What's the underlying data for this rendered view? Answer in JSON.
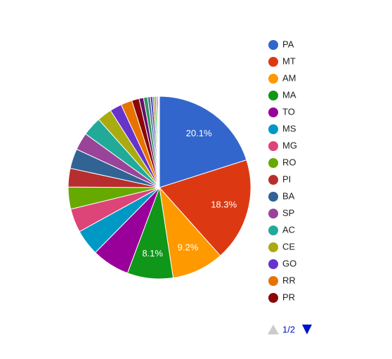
{
  "chart_data": {
    "type": "pie",
    "categories": [
      "PA",
      "MT",
      "AM",
      "MA",
      "TO",
      "MS",
      "MG",
      "RO",
      "PI",
      "BA",
      "SP",
      "AC",
      "CE",
      "GO",
      "RR",
      "PR",
      null,
      null,
      null,
      null,
      null,
      null,
      null,
      null,
      null,
      null
    ],
    "values": [
      20.1,
      18.3,
      9.2,
      8.1,
      6.7,
      4.6,
      4.2,
      3.9,
      3.3,
      3.5,
      3.1,
      3.4,
      2.6,
      2.1,
      2.0,
      1.3,
      0.8,
      0.7,
      0.5,
      0.4,
      0.3,
      0.3,
      0.2,
      0.2,
      0.1,
      0.1
    ],
    "value_labels": [
      "20.1%",
      "18.3%",
      "9.2%",
      "8.1%",
      null,
      null,
      null,
      null,
      null,
      null,
      null,
      null,
      null,
      null,
      null,
      null,
      null,
      null,
      null,
      null,
      null,
      null,
      null,
      null,
      null,
      null
    ],
    "colors": [
      "#3366cc",
      "#dc3912",
      "#ff9900",
      "#109618",
      "#990099",
      "#0099c6",
      "#dd4477",
      "#66aa00",
      "#b82e2e",
      "#316395",
      "#994499",
      "#22aa99",
      "#aaaa11",
      "#6633cc",
      "#e67300",
      "#8b0707",
      "#651067",
      "#329262",
      "#5574a6",
      "#3b3eac",
      "#b77322",
      "#16d620",
      "#b91383",
      "#f4359e",
      "#9c5935",
      "#a9c413"
    ],
    "legend_page": "1/2"
  }
}
